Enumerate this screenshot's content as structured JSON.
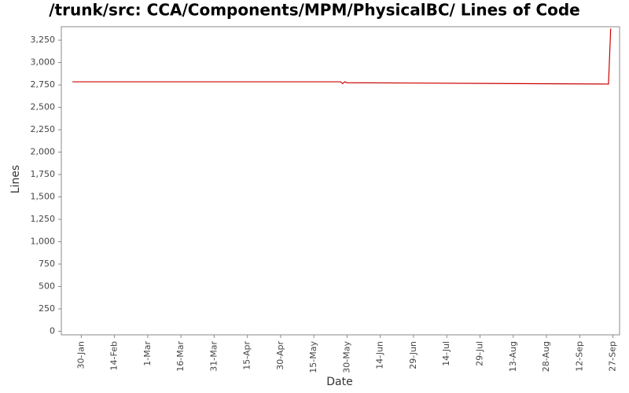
{
  "chart_data": {
    "type": "line",
    "title": "/trunk/src: CCA/Components/MPM/PhysicalBC/ Lines of Code",
    "x_label": "Date",
    "y_label": "Lines",
    "x": [
      "26-Jan",
      "27-May",
      "28-May",
      "29-May",
      "30-May",
      "25-Sep",
      "26-Sep"
    ],
    "series": [
      {
        "name": "Lines",
        "color": "#cc0000",
        "values": [
          2785,
          2785,
          2765,
          2785,
          2775,
          2760,
          3380
        ]
      }
    ],
    "xlim": [
      "21-Jan",
      "30-Sep"
    ],
    "xticks": [
      "30-Jan",
      "14-Feb",
      "1-Mar",
      "16-Mar",
      "31-Mar",
      "15-Apr",
      "30-Apr",
      "15-May",
      "30-May",
      "14-Jun",
      "29-Jun",
      "14-Jul",
      "29-Jul",
      "13-Aug",
      "28-Aug",
      "12-Sep",
      "27-Sep"
    ],
    "ylim": [
      -40,
      3400
    ],
    "yticks": [
      0,
      250,
      500,
      750,
      {
        "value": 1000,
        "label": "1,000"
      },
      {
        "value": 1250,
        "label": "1,250"
      },
      {
        "value": 1500,
        "label": "1,500"
      },
      {
        "value": 1750,
        "label": "1,750"
      },
      {
        "value": 2000,
        "label": "2,000"
      },
      {
        "value": 2250,
        "label": "2,250"
      },
      {
        "value": 2500,
        "label": "2,500"
      },
      {
        "value": 2750,
        "label": "2,750"
      },
      {
        "value": 3000,
        "label": "3,000"
      },
      {
        "value": 3250,
        "label": "3,250"
      }
    ],
    "grid": false
  }
}
